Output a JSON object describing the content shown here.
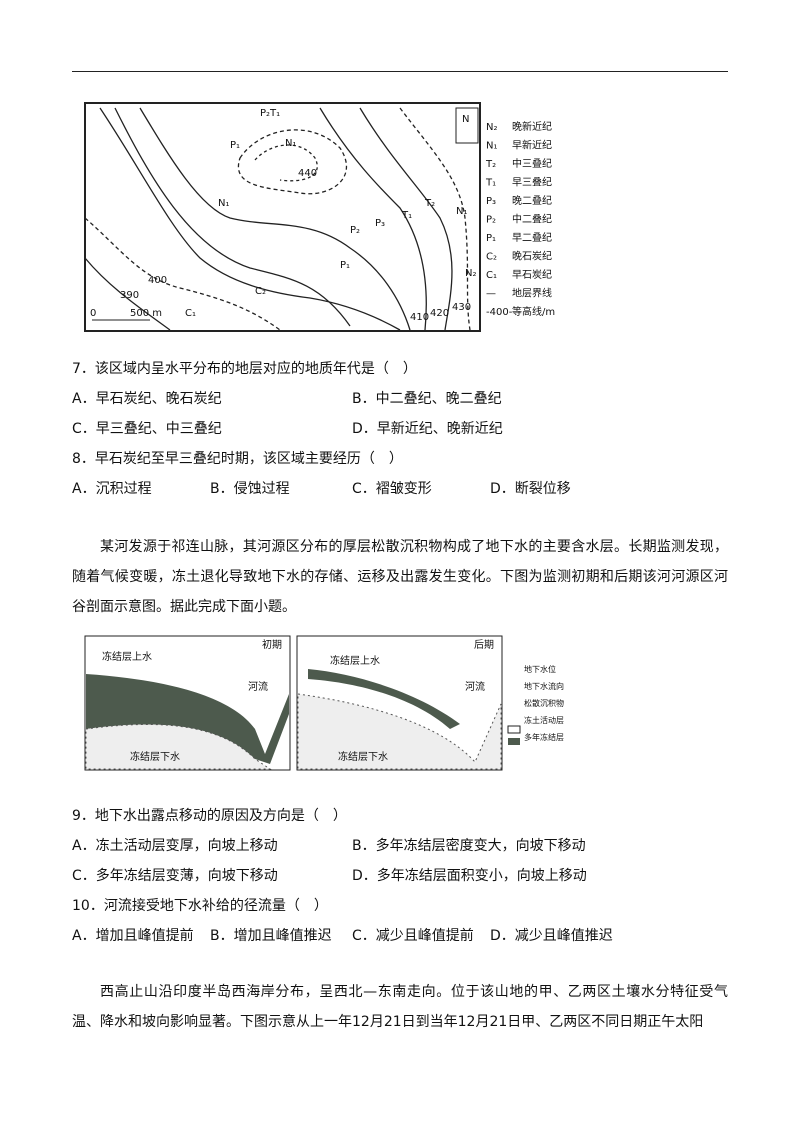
{
  "figure1": {
    "map_labels": [
      "P₂T₁",
      "P₁",
      "N₁",
      "440",
      "N₁",
      "P₂",
      "P₃",
      "T₁",
      "T₂",
      "N₁",
      "N₂",
      "P₁",
      "C₂",
      "C₁",
      "400",
      "390",
      "410",
      "420",
      "430"
    ],
    "north": "N",
    "scale": [
      "0",
      "500 m"
    ],
    "legend": [
      {
        "code": "N₂",
        "name": "晚新近纪"
      },
      {
        "code": "N₁",
        "name": "早新近纪"
      },
      {
        "code": "T₂",
        "name": "中三叠纪"
      },
      {
        "code": "T₁",
        "name": "早三叠纪"
      },
      {
        "code": "P₃",
        "name": "晚二叠纪"
      },
      {
        "code": "P₂",
        "name": "中二叠纪"
      },
      {
        "code": "P₁",
        "name": "早二叠纪"
      },
      {
        "code": "C₂",
        "name": "晚石炭纪"
      },
      {
        "code": "C₁",
        "name": "早石炭纪"
      },
      {
        "code": "—",
        "name": "地层界线"
      },
      {
        "code": "-400-",
        "name": "等高线/m"
      }
    ]
  },
  "questions": [
    {
      "stem": "7．该区域内呈水平分布的地层对应的地质年代是（　）",
      "options": [
        "A．早石炭纪、晚石炭纪",
        "B．中二叠纪、晚二叠纪",
        "C．早三叠纪、中三叠纪",
        "D．早新近纪、晚新近纪"
      ]
    },
    {
      "stem": "8．早石炭纪至早三叠纪时期，该区域主要经历（　）",
      "options": [
        "A．沉积过程",
        "B．侵蚀过程",
        "C．褶皱变形",
        "D．断裂位移"
      ]
    },
    {
      "stem": "9．地下水出露点移动的原因及方向是（　）",
      "options": [
        "A．冻土活动层变厚，向坡上移动",
        "B．多年冻结层密度变大，向坡下移动",
        "C．多年冻结层变薄，向坡下移动",
        "D．多年冻结层面积变小，向坡上移动"
      ]
    },
    {
      "stem": "10．河流接受地下水补给的径流量（　）",
      "options": [
        "A．增加且峰值提前",
        "B．增加且峰值推迟",
        "C．减少且峰值提前",
        "D．减少且峰值推迟"
      ]
    }
  ],
  "passages": [
    "某河发源于祁连山脉，其河源区分布的厚层松散沉积物构成了地下水的主要含水层。长期监测发现，随着气候变暖，冻土退化导致地下水的存储、运移及出露发生变化。下图为监测初期和后期该河河源区河谷剖面示意图。据此完成下面小题。",
    "西高止山沿印度半岛西海岸分布，呈西北—东南走向。位于该山地的甲、乙两区土壤水分特征受气温、降水和坡向影响显著。下图示意从上一年12月21日到当年12月21日甲、乙两区不同日期正午太阳"
  ],
  "figure2": {
    "panels": [
      "初期",
      "后期"
    ],
    "labels": {
      "upper": "冻结层上水",
      "river": "河流",
      "lower": "冻结层下水"
    },
    "legend": [
      "地下水位",
      "地下水流向",
      "松散沉积物",
      "冻土活动层",
      "多年冻结层"
    ]
  }
}
